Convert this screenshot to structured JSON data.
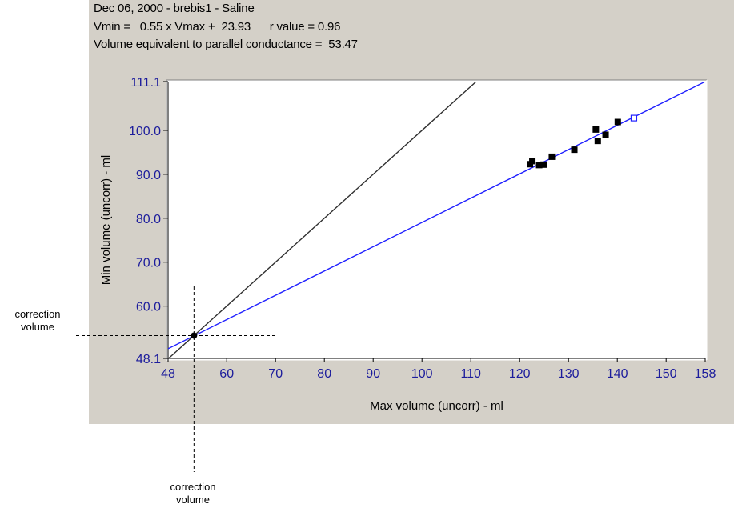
{
  "header": {
    "line1": "Dec 06, 2000 - brebis1 - Saline",
    "line2": "Vmin =   0.55 x Vmax +  23.93      r value = 0.96",
    "line3": "Volume equivalent to parallel conductance =  53.47"
  },
  "chart_data": {
    "type": "scatter",
    "xlabel": "Max volume (uncorr) - ml",
    "ylabel": "Min volume (uncorr) - ml",
    "xlim": [
      48,
      158
    ],
    "ylim": [
      48.1,
      111.1
    ],
    "x_ticks": [
      "48",
      "60",
      "70",
      "80",
      "90",
      "100",
      "110",
      "120",
      "130",
      "140",
      "150",
      "158"
    ],
    "y_ticks": [
      "48.1",
      "60.0",
      "70.0",
      "80.0",
      "90.0",
      "100.0",
      "111.1"
    ],
    "series": [
      {
        "points": [
          [
            122.1,
            92.3
          ],
          [
            122.6,
            93.0
          ],
          [
            124.0,
            92.1
          ],
          [
            124.9,
            92.2
          ],
          [
            126.6,
            94.0
          ],
          [
            131.2,
            95.6
          ],
          [
            135.6,
            100.2
          ],
          [
            136.0,
            97.6
          ],
          [
            137.6,
            99.0
          ],
          [
            140.1,
            101.9
          ]
        ],
        "marker": "filled-square",
        "color": "#000000"
      },
      {
        "points": [
          [
            143.4,
            102.8
          ]
        ],
        "marker": "hollow-square",
        "color": "#2020ff"
      }
    ],
    "lines": [
      {
        "kind": "regression",
        "color": "#2020ff",
        "from": [
          48,
          50.3
        ],
        "to": [
          158,
          111.1
        ]
      },
      {
        "kind": "identity",
        "color": "#303030",
        "from": [
          48,
          48
        ],
        "to": [
          111.1,
          111.1
        ]
      }
    ],
    "correction_point": [
      53.3,
      53.3
    ],
    "grid": false
  },
  "annotations": {
    "left": "correction\nvolume",
    "bottom": "correction\nvolume"
  }
}
